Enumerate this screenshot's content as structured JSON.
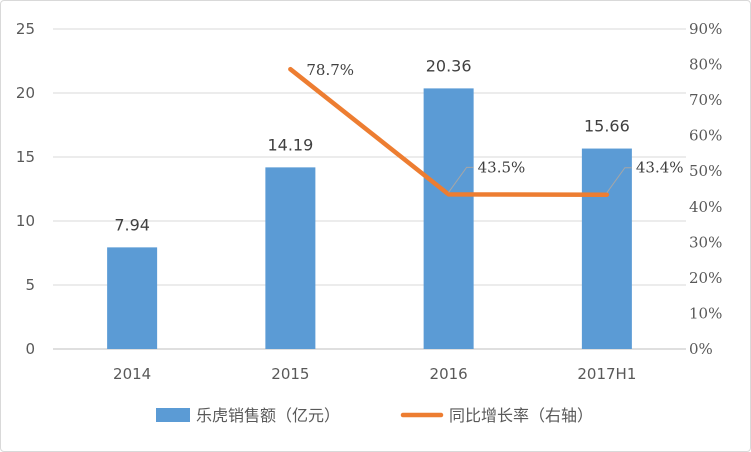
{
  "chart_data": {
    "type": "bar",
    "categories": [
      "2014",
      "2015",
      "2016",
      "2017H1"
    ],
    "series": [
      {
        "name": "乐虎销售额（亿元）",
        "type": "bar",
        "axis": "left",
        "values": [
          7.94,
          14.19,
          20.36,
          15.66
        ],
        "labels": [
          "7.94",
          "14.19",
          "20.36",
          "15.66"
        ],
        "color": "#5b9bd5"
      },
      {
        "name": "同比增长率（右轴）",
        "type": "line",
        "axis": "right",
        "values": [
          null,
          78.7,
          43.5,
          43.4
        ],
        "labels": [
          "",
          "78.7%",
          "43.5%",
          "43.4%"
        ],
        "color": "#ed7d31"
      }
    ],
    "y_left": {
      "min": 0,
      "max": 25,
      "ticks": [
        "0",
        "5",
        "10",
        "15",
        "20",
        "25"
      ]
    },
    "y_right": {
      "min": 0,
      "max": 90,
      "ticks": [
        "0%",
        "10%",
        "20%",
        "30%",
        "40%",
        "50%",
        "60%",
        "70%",
        "80%",
        "90%"
      ]
    },
    "title": "",
    "xlabel": "",
    "ylabel": "",
    "grid": true,
    "legend": "bottom"
  }
}
